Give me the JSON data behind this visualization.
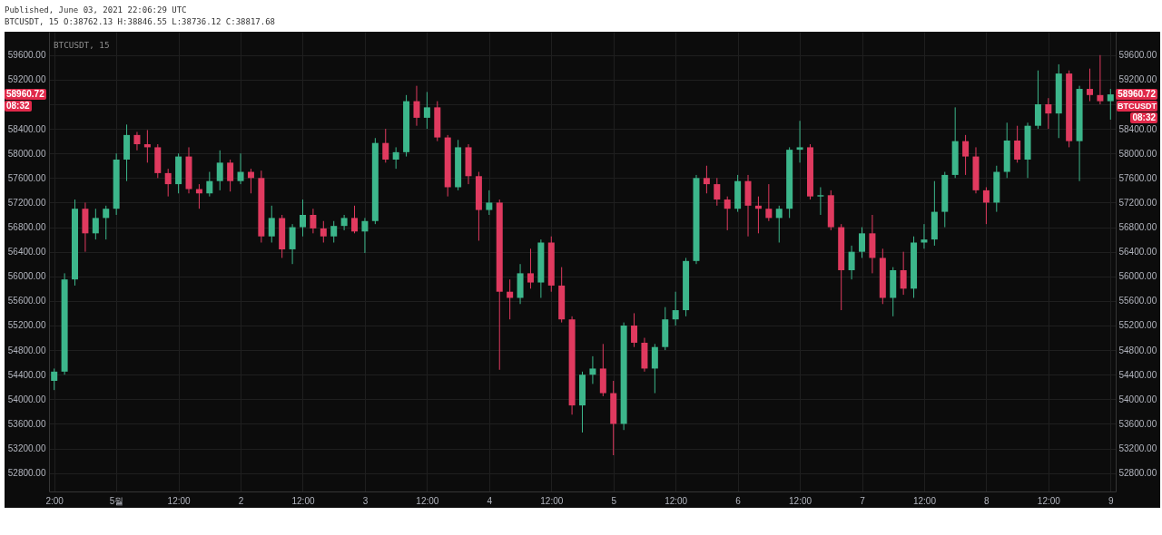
{
  "chart_data": {
    "type": "candlestick",
    "title": "BTCUSDT, 15 O:38762.13 H:38846.55 L:38736.12 C:38817.68",
    "subtitle": "Published, June 03, 2021 22:06:29 UTC",
    "annotations": [
      "BTCUSDT, 15",
      "58960.72",
      "08:32",
      "58960.72",
      "BTCUSDT",
      "08:32"
    ],
    "categories": [
      "2:00",
      null,
      null,
      null,
      null,
      null,
      "5월",
      null,
      null,
      null,
      null,
      null,
      "12:00",
      null,
      null,
      null,
      null,
      null,
      "2",
      null,
      null,
      null,
      null,
      null,
      "12:00",
      null,
      null,
      null,
      null,
      null,
      "3",
      null,
      null,
      null,
      null,
      null,
      "12:00",
      null,
      null,
      null,
      null,
      null,
      "4",
      null,
      null,
      null,
      null,
      null,
      "12:00",
      null,
      null,
      null,
      null,
      null,
      "5",
      null,
      null,
      null,
      null,
      null,
      "12:00",
      null,
      null,
      null,
      null,
      null,
      "6",
      null,
      null,
      null,
      null,
      null,
      "12:00",
      null,
      null,
      null,
      null,
      null,
      "7",
      null,
      null,
      null,
      null,
      null,
      "12:00",
      null,
      null,
      null,
      null,
      null,
      "8",
      null,
      null,
      null,
      null,
      null,
      "12:00",
      null,
      null,
      null,
      null,
      null,
      "9"
    ],
    "ohlc": [
      [
        54300,
        54500,
        54150,
        54450
      ],
      [
        54450,
        56050,
        54400,
        55950
      ],
      [
        55950,
        57250,
        55850,
        57100
      ],
      [
        57100,
        57200,
        56400,
        56700
      ],
      [
        56700,
        57100,
        56600,
        56950
      ],
      [
        56950,
        57150,
        56600,
        57100
      ],
      [
        57100,
        58000,
        57000,
        57900
      ],
      [
        57900,
        58470,
        57550,
        58300
      ],
      [
        58300,
        58350,
        58050,
        58150
      ],
      [
        58150,
        58380,
        57850,
        58100
      ],
      [
        58100,
        58150,
        57600,
        57680
      ],
      [
        57680,
        57750,
        57300,
        57500
      ],
      [
        57500,
        58000,
        57350,
        57950
      ],
      [
        57950,
        58100,
        57350,
        57420
      ],
      [
        57420,
        57500,
        57100,
        57350
      ],
      [
        57350,
        57700,
        57300,
        57550
      ],
      [
        57550,
        58050,
        57400,
        57850
      ],
      [
        57850,
        57900,
        57380,
        57550
      ],
      [
        57550,
        58000,
        57500,
        57700
      ],
      [
        57700,
        57750,
        57350,
        57600
      ],
      [
        57600,
        57720,
        56550,
        56650
      ],
      [
        56650,
        57150,
        56550,
        56950
      ],
      [
        56950,
        57000,
        56300,
        56440
      ],
      [
        56440,
        56850,
        56200,
        56800
      ],
      [
        56800,
        57250,
        56650,
        57000
      ],
      [
        57000,
        57100,
        56700,
        56780
      ],
      [
        56780,
        56900,
        56550,
        56650
      ],
      [
        56650,
        56900,
        56550,
        56820
      ],
      [
        56820,
        57000,
        56750,
        56950
      ],
      [
        56950,
        57150,
        56700,
        56730
      ],
      [
        56730,
        56950,
        56380,
        56900
      ],
      [
        56900,
        58250,
        56850,
        58170
      ],
      [
        58170,
        58400,
        57850,
        57900
      ],
      [
        57900,
        58100,
        57750,
        58020
      ],
      [
        58020,
        58950,
        57950,
        58850
      ],
      [
        58850,
        59100,
        58450,
        58580
      ],
      [
        58580,
        59000,
        58400,
        58750
      ],
      [
        58750,
        58850,
        58200,
        58260
      ],
      [
        58260,
        58300,
        57300,
        57450
      ],
      [
        57450,
        58220,
        57400,
        58100
      ],
      [
        58100,
        58150,
        57500,
        57630
      ],
      [
        57630,
        57700,
        56580,
        57080
      ],
      [
        57080,
        57400,
        57000,
        57200
      ],
      [
        57200,
        57250,
        54480,
        55750
      ],
      [
        55750,
        55950,
        55300,
        55650
      ],
      [
        55650,
        56200,
        55550,
        56050
      ],
      [
        56050,
        56450,
        55800,
        55900
      ],
      [
        55900,
        56600,
        55650,
        56550
      ],
      [
        56550,
        56650,
        55750,
        55850
      ],
      [
        55850,
        56150,
        55250,
        55300
      ],
      [
        55300,
        55350,
        53750,
        53900
      ],
      [
        53900,
        54450,
        53460,
        54400
      ],
      [
        54400,
        54700,
        54250,
        54500
      ],
      [
        54500,
        54900,
        54050,
        54100
      ],
      [
        54100,
        54300,
        53090,
        53600
      ],
      [
        53600,
        55250,
        53500,
        55200
      ],
      [
        55200,
        55400,
        54850,
        54920
      ],
      [
        54920,
        55000,
        54450,
        54500
      ],
      [
        54500,
        54900,
        54100,
        54850
      ],
      [
        54850,
        55500,
        54800,
        55300
      ],
      [
        55300,
        55750,
        55200,
        55450
      ],
      [
        55450,
        56300,
        55350,
        56250
      ],
      [
        56250,
        57650,
        56200,
        57600
      ],
      [
        57600,
        57800,
        57350,
        57500
      ],
      [
        57500,
        57600,
        57150,
        57250
      ],
      [
        57250,
        57300,
        56750,
        57100
      ],
      [
        57100,
        57650,
        57050,
        57550
      ],
      [
        57550,
        57650,
        56650,
        57150
      ],
      [
        57150,
        57300,
        56700,
        57100
      ],
      [
        57100,
        57500,
        56900,
        56950
      ],
      [
        56950,
        57150,
        56550,
        57100
      ],
      [
        57100,
        58100,
        56950,
        58060
      ],
      [
        58060,
        58530,
        57850,
        58100
      ],
      [
        58100,
        58150,
        57250,
        57300
      ],
      [
        57300,
        57450,
        57000,
        57320
      ],
      [
        57320,
        57400,
        56750,
        56800
      ],
      [
        56800,
        56850,
        55450,
        56100
      ],
      [
        56100,
        56500,
        55950,
        56400
      ],
      [
        56400,
        56800,
        56300,
        56700
      ],
      [
        56700,
        57000,
        56050,
        56300
      ],
      [
        56300,
        56450,
        55550,
        55650
      ],
      [
        55650,
        56150,
        55350,
        56100
      ],
      [
        56100,
        56400,
        55700,
        55800
      ],
      [
        55800,
        56650,
        55650,
        56550
      ],
      [
        56550,
        56850,
        56450,
        56600
      ],
      [
        56600,
        57550,
        56500,
        57050
      ],
      [
        57050,
        57700,
        56800,
        57650
      ],
      [
        57650,
        58750,
        57600,
        58200
      ],
      [
        58200,
        58300,
        57650,
        57950
      ],
      [
        57950,
        58100,
        57350,
        57400
      ],
      [
        57400,
        57450,
        56850,
        57200
      ],
      [
        57200,
        57800,
        57050,
        57700
      ],
      [
        57700,
        58500,
        57600,
        58210
      ],
      [
        58210,
        58450,
        57850,
        57900
      ],
      [
        57900,
        58500,
        57600,
        58450
      ],
      [
        58450,
        59350,
        58400,
        58800
      ],
      [
        58800,
        58900,
        58400,
        58650
      ],
      [
        58650,
        59450,
        58250,
        59300
      ],
      [
        59300,
        59350,
        58100,
        58200
      ],
      [
        58200,
        59100,
        57550,
        59050
      ],
      [
        59050,
        59380,
        58850,
        58950
      ],
      [
        58950,
        59600,
        58800,
        58850
      ],
      [
        58850,
        59050,
        58550,
        58960.72
      ]
    ],
    "colors": [
      "#3cb68b",
      "#3cb68b",
      "#3cb68b",
      "#e03a5f",
      "#3cb68b",
      "#3cb68b",
      "#3cb68b",
      "#3cb68b",
      "#e03a5f",
      "#e03a5f",
      "#e03a5f",
      "#e03a5f",
      "#3cb68b",
      "#e03a5f",
      "#e03a5f",
      "#3cb68b",
      "#3cb68b",
      "#e03a5f",
      "#3cb68b",
      "#e03a5f",
      "#e03a5f",
      "#3cb68b",
      "#e03a5f",
      "#3cb68b",
      "#3cb68b",
      "#e03a5f",
      "#e03a5f",
      "#3cb68b",
      "#3cb68b",
      "#e03a5f",
      "#3cb68b",
      "#3cb68b",
      "#e03a5f",
      "#3cb68b",
      "#3cb68b",
      "#e03a5f",
      "#3cb68b",
      "#e03a5f",
      "#e03a5f",
      "#3cb68b",
      "#e03a5f",
      "#e03a5f",
      "#3cb68b",
      "#e03a5f",
      "#e03a5f",
      "#3cb68b",
      "#e03a5f",
      "#3cb68b",
      "#e03a5f",
      "#e03a5f",
      "#e03a5f",
      "#3cb68b",
      "#3cb68b",
      "#e03a5f",
      "#e03a5f",
      "#3cb68b",
      "#e03a5f",
      "#e03a5f",
      "#3cb68b",
      "#3cb68b",
      "#3cb68b",
      "#3cb68b",
      "#3cb68b",
      "#e03a5f",
      "#e03a5f",
      "#e03a5f",
      "#3cb68b",
      "#e03a5f",
      "#e03a5f",
      "#e03a5f",
      "#3cb68b",
      "#3cb68b",
      "#3cb68b",
      "#e03a5f",
      "#3cb68b",
      "#e03a5f",
      "#e03a5f",
      "#3cb68b",
      "#3cb68b",
      "#e03a5f",
      "#e03a5f",
      "#3cb68b",
      "#e03a5f",
      "#3cb68b",
      "#3cb68b",
      "#3cb68b",
      "#3cb68b",
      "#3cb68b",
      "#e03a5f",
      "#e03a5f",
      "#e03a5f",
      "#3cb68b",
      "#3cb68b",
      "#e03a5f",
      "#3cb68b",
      "#3cb68b",
      "#e03a5f",
      "#3cb68b",
      "#e03a5f",
      "#3cb68b",
      "#e03a5f",
      "#e03a5f",
      "#3cb68b"
    ],
    "ylim": [
      52500,
      59980
    ],
    "yticks": [
      {
        "value": 52800,
        "label": "52800.00"
      },
      {
        "value": 53200,
        "label": "53200.00"
      },
      {
        "value": 53600,
        "label": "53600.00"
      },
      {
        "value": 54000,
        "label": "54000.00"
      },
      {
        "value": 54400,
        "label": "54400.00"
      },
      {
        "value": 54800,
        "label": "54800.00"
      },
      {
        "value": 55200,
        "label": "55200.00"
      },
      {
        "value": 55600,
        "label": "55600.00"
      },
      {
        "value": 56000,
        "label": "56000.00"
      },
      {
        "value": 56400,
        "label": "56400.00"
      },
      {
        "value": 56800,
        "label": "56800.00"
      },
      {
        "value": 57200,
        "label": "57200.00"
      },
      {
        "value": 57600,
        "label": "57600.00"
      },
      {
        "value": 58000,
        "label": "58000.00"
      },
      {
        "value": 58400,
        "label": "58400.00"
      },
      {
        "value": 58800,
        "label": null
      },
      {
        "value": 59200,
        "label": "59200.00"
      },
      {
        "value": 59600,
        "label": "59600.00"
      }
    ],
    "y2lim": [
      52500,
      59980
    ],
    "y2ticks": [
      {
        "value": 52800,
        "label": "52800.00"
      },
      {
        "value": 53200,
        "label": "53200.00"
      },
      {
        "value": 53600,
        "label": "53600.00"
      },
      {
        "value": 54000,
        "label": "54000.00"
      },
      {
        "value": 54400,
        "label": "54400.00"
      },
      {
        "value": 54800,
        "label": "54800.00"
      },
      {
        "value": 55200,
        "label": "55200.00"
      },
      {
        "value": 55600,
        "label": "55600.00"
      },
      {
        "value": 56000,
        "label": "56000.00"
      },
      {
        "value": 56400,
        "label": "56400.00"
      },
      {
        "value": 56800,
        "label": "56800.00"
      },
      {
        "value": 57200,
        "label": "57200.00"
      },
      {
        "value": 57600,
        "label": "57600.00"
      },
      {
        "value": 58000,
        "label": "58000.00"
      },
      {
        "value": 58400,
        "label": "58400.00"
      },
      {
        "value": 58800,
        "label": null
      },
      {
        "value": 59200,
        "label": "59200.00"
      },
      {
        "value": 59600,
        "label": "59600.00"
      }
    ],
    "grid": true
  }
}
